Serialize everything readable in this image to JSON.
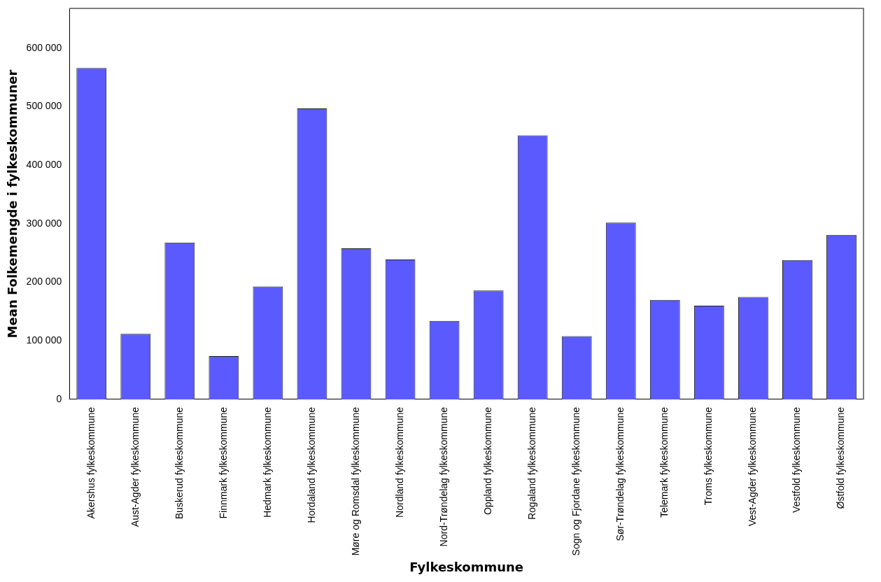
{
  "chart_data": {
    "type": "bar",
    "xlabel": "Fylkeskommune",
    "ylabel": "Mean Folkemengde i fylkeskommuner",
    "categories": [
      "Akershus fylkeskommune",
      "Aust-Agder fylkeskommune",
      "Buskerud fylkeskommune",
      "Finnmark fylkeskommune",
      "Hedmark fylkeskommune",
      "Hordaland fylkeskommune",
      "Møre og Romsdal fylkeskommune",
      "Nordland fylkeskommune",
      "Nord-Trøndelag fylkeskommune",
      "Oppland fylkeskommune",
      "Rogaland fylkeskommune",
      "Sogn og Fjordane fylkeskommune",
      "Sør-Trøndelag fylkeskommune",
      "Telemark fylkeskommune",
      "Troms fylkeskommune",
      "Vest-Agder fylkeskommune",
      "Vestfold fylkeskommune",
      "Østfold fylkeskommune"
    ],
    "values": [
      566000,
      112000,
      268000,
      74000,
      193000,
      497000,
      258000,
      239000,
      134000,
      186000,
      451000,
      108000,
      302000,
      170000,
      160000,
      175000,
      238000,
      281000
    ],
    "color": "#5a5aff",
    "ylim": [
      0,
      668000
    ],
    "yticks": [
      {
        "value": 0,
        "label": "0"
      },
      {
        "value": 100000,
        "label": "100 000"
      },
      {
        "value": 200000,
        "label": "200 000"
      },
      {
        "value": 300000,
        "label": "300 000"
      },
      {
        "value": 400000,
        "label": "400 000"
      },
      {
        "value": 500000,
        "label": "500 000"
      },
      {
        "value": 600000,
        "label": "600 000"
      }
    ],
    "grid": false,
    "legend": false
  }
}
